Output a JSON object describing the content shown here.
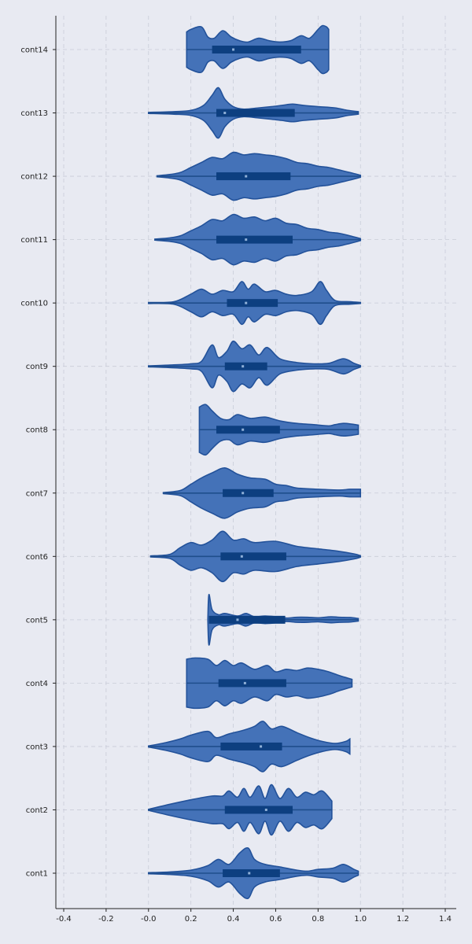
{
  "chart_data": {
    "type": "violin",
    "orientation": "horizontal",
    "title": "",
    "xlabel": "",
    "ylabel": "",
    "xlim": [
      -0.45,
      1.45
    ],
    "xticks": [
      -0.4,
      -0.2,
      0.0,
      0.2,
      0.4,
      0.6,
      0.8,
      1.0,
      1.2,
      1.4
    ],
    "xtick_labels": [
      "-0.4",
      "-0.2",
      "-0.0",
      "0.2",
      "0.4",
      "0.6",
      "0.8",
      "1.0",
      "1.2",
      "1.4"
    ],
    "grid": true,
    "colors": {
      "fill": "#4472b8",
      "edge": "#23529a",
      "box": "#0d3f80",
      "median": "#8fb0d8",
      "background": "#e8eaf2",
      "grid": "#c9ccd8"
    },
    "categories": [
      "cont1",
      "cont2",
      "cont3",
      "cont4",
      "cont5",
      "cont6",
      "cont7",
      "cont8",
      "cont9",
      "cont10",
      "cont11",
      "cont12",
      "cont13",
      "cont14"
    ],
    "series": [
      {
        "category": "cont1",
        "min": 0.0,
        "q1": 0.35,
        "median": 0.475,
        "q3": 0.62,
        "max": 0.99,
        "density": [
          [
            0.0,
            0.02
          ],
          [
            0.1,
            0.05
          ],
          [
            0.2,
            0.12
          ],
          [
            0.28,
            0.3
          ],
          [
            0.33,
            0.55
          ],
          [
            0.38,
            0.35
          ],
          [
            0.43,
            0.8
          ],
          [
            0.47,
            1.0
          ],
          [
            0.5,
            0.55
          ],
          [
            0.55,
            0.35
          ],
          [
            0.62,
            0.25
          ],
          [
            0.7,
            0.12
          ],
          [
            0.75,
            0.08
          ],
          [
            0.8,
            0.15
          ],
          [
            0.87,
            0.2
          ],
          [
            0.92,
            0.35
          ],
          [
            0.97,
            0.15
          ],
          [
            0.99,
            0.08
          ]
        ]
      },
      {
        "category": "cont2",
        "min": 0.0,
        "q1": 0.36,
        "median": 0.555,
        "q3": 0.68,
        "max": 0.865,
        "density": [
          [
            0.0,
            0.02
          ],
          [
            0.1,
            0.22
          ],
          [
            0.2,
            0.4
          ],
          [
            0.3,
            0.55
          ],
          [
            0.35,
            0.55
          ],
          [
            0.38,
            0.75
          ],
          [
            0.42,
            0.5
          ],
          [
            0.45,
            0.85
          ],
          [
            0.48,
            0.5
          ],
          [
            0.52,
            0.95
          ],
          [
            0.55,
            0.45
          ],
          [
            0.58,
            1.0
          ],
          [
            0.62,
            0.45
          ],
          [
            0.66,
            0.85
          ],
          [
            0.7,
            0.5
          ],
          [
            0.74,
            0.7
          ],
          [
            0.78,
            0.6
          ],
          [
            0.82,
            0.75
          ],
          [
            0.865,
            0.35
          ]
        ]
      },
      {
        "category": "cont3",
        "min": 0.0,
        "q1": 0.34,
        "median": 0.53,
        "q3": 0.63,
        "max": 0.95,
        "density": [
          [
            0.0,
            0.02
          ],
          [
            0.08,
            0.15
          ],
          [
            0.15,
            0.3
          ],
          [
            0.2,
            0.45
          ],
          [
            0.28,
            0.6
          ],
          [
            0.32,
            0.35
          ],
          [
            0.38,
            0.5
          ],
          [
            0.45,
            0.65
          ],
          [
            0.5,
            0.8
          ],
          [
            0.54,
            1.0
          ],
          [
            0.58,
            0.7
          ],
          [
            0.63,
            0.8
          ],
          [
            0.7,
            0.55
          ],
          [
            0.76,
            0.35
          ],
          [
            0.82,
            0.2
          ],
          [
            0.88,
            0.12
          ],
          [
            0.93,
            0.2
          ],
          [
            0.95,
            0.3
          ]
        ]
      },
      {
        "category": "cont4",
        "min": 0.18,
        "q1": 0.33,
        "median": 0.455,
        "q3": 0.65,
        "max": 0.96,
        "density": [
          [
            0.18,
            0.95
          ],
          [
            0.22,
            1.0
          ],
          [
            0.28,
            0.95
          ],
          [
            0.32,
            0.7
          ],
          [
            0.36,
            0.9
          ],
          [
            0.4,
            0.7
          ],
          [
            0.44,
            0.8
          ],
          [
            0.5,
            0.55
          ],
          [
            0.56,
            0.7
          ],
          [
            0.6,
            0.45
          ],
          [
            0.65,
            0.55
          ],
          [
            0.7,
            0.5
          ],
          [
            0.75,
            0.6
          ],
          [
            0.8,
            0.55
          ],
          [
            0.85,
            0.45
          ],
          [
            0.9,
            0.3
          ],
          [
            0.94,
            0.2
          ],
          [
            0.96,
            0.15
          ]
        ]
      },
      {
        "category": "cont5",
        "min": 0.285,
        "q1": 0.285,
        "median": 0.42,
        "q3": 0.645,
        "max": 0.99,
        "density": [
          [
            0.28,
            0.05
          ],
          [
            0.285,
            1.0
          ],
          [
            0.3,
            0.4
          ],
          [
            0.33,
            0.2
          ],
          [
            0.36,
            0.25
          ],
          [
            0.42,
            0.15
          ],
          [
            0.46,
            0.25
          ],
          [
            0.5,
            0.12
          ],
          [
            0.55,
            0.15
          ],
          [
            0.6,
            0.12
          ],
          [
            0.65,
            0.07
          ],
          [
            0.7,
            0.1
          ],
          [
            0.75,
            0.1
          ],
          [
            0.8,
            0.08
          ],
          [
            0.86,
            0.12
          ],
          [
            0.9,
            0.1
          ],
          [
            0.95,
            0.09
          ],
          [
            0.99,
            0.05
          ]
        ]
      },
      {
        "category": "cont6",
        "min": 0.01,
        "q1": 0.34,
        "median": 0.44,
        "q3": 0.65,
        "max": 1.0,
        "density": [
          [
            0.01,
            0.02
          ],
          [
            0.1,
            0.08
          ],
          [
            0.15,
            0.35
          ],
          [
            0.2,
            0.55
          ],
          [
            0.25,
            0.45
          ],
          [
            0.3,
            0.65
          ],
          [
            0.35,
            1.0
          ],
          [
            0.4,
            0.65
          ],
          [
            0.45,
            0.7
          ],
          [
            0.5,
            0.55
          ],
          [
            0.6,
            0.6
          ],
          [
            0.7,
            0.4
          ],
          [
            0.8,
            0.3
          ],
          [
            0.9,
            0.2
          ],
          [
            0.97,
            0.1
          ],
          [
            1.0,
            0.03
          ]
        ]
      },
      {
        "category": "cont7",
        "min": 0.07,
        "q1": 0.35,
        "median": 0.445,
        "q3": 0.59,
        "max": 1.0,
        "density": [
          [
            0.07,
            0.02
          ],
          [
            0.15,
            0.1
          ],
          [
            0.2,
            0.35
          ],
          [
            0.25,
            0.6
          ],
          [
            0.3,
            0.8
          ],
          [
            0.36,
            1.0
          ],
          [
            0.42,
            0.75
          ],
          [
            0.48,
            0.6
          ],
          [
            0.55,
            0.55
          ],
          [
            0.6,
            0.35
          ],
          [
            0.65,
            0.3
          ],
          [
            0.7,
            0.2
          ],
          [
            0.8,
            0.15
          ],
          [
            0.9,
            0.12
          ],
          [
            0.95,
            0.15
          ],
          [
            1.0,
            0.15
          ]
        ]
      },
      {
        "category": "cont8",
        "min": 0.24,
        "q1": 0.32,
        "median": 0.445,
        "q3": 0.62,
        "max": 0.99,
        "density": [
          [
            0.24,
            0.9
          ],
          [
            0.27,
            1.0
          ],
          [
            0.3,
            0.75
          ],
          [
            0.34,
            0.45
          ],
          [
            0.38,
            0.4
          ],
          [
            0.42,
            0.6
          ],
          [
            0.48,
            0.45
          ],
          [
            0.55,
            0.5
          ],
          [
            0.62,
            0.35
          ],
          [
            0.7,
            0.25
          ],
          [
            0.78,
            0.2
          ],
          [
            0.85,
            0.15
          ],
          [
            0.88,
            0.2
          ],
          [
            0.92,
            0.25
          ],
          [
            0.96,
            0.22
          ],
          [
            0.99,
            0.18
          ]
        ]
      },
      {
        "category": "cont9",
        "min": 0.0,
        "q1": 0.36,
        "median": 0.445,
        "q3": 0.56,
        "max": 1.0,
        "density": [
          [
            0.0,
            0.02
          ],
          [
            0.1,
            0.05
          ],
          [
            0.2,
            0.1
          ],
          [
            0.25,
            0.2
          ],
          [
            0.3,
            0.85
          ],
          [
            0.33,
            0.35
          ],
          [
            0.37,
            0.6
          ],
          [
            0.4,
            1.0
          ],
          [
            0.44,
            0.7
          ],
          [
            0.48,
            0.85
          ],
          [
            0.52,
            0.45
          ],
          [
            0.56,
            0.75
          ],
          [
            0.62,
            0.3
          ],
          [
            0.7,
            0.15
          ],
          [
            0.78,
            0.1
          ],
          [
            0.85,
            0.12
          ],
          [
            0.92,
            0.3
          ],
          [
            0.97,
            0.12
          ],
          [
            1.0,
            0.03
          ]
        ]
      },
      {
        "category": "cont10",
        "min": 0.0,
        "q1": 0.37,
        "median": 0.46,
        "q3": 0.61,
        "max": 1.0,
        "density": [
          [
            0.0,
            0.02
          ],
          [
            0.12,
            0.05
          ],
          [
            0.2,
            0.35
          ],
          [
            0.25,
            0.55
          ],
          [
            0.3,
            0.35
          ],
          [
            0.35,
            0.5
          ],
          [
            0.4,
            0.45
          ],
          [
            0.44,
            0.85
          ],
          [
            0.47,
            0.55
          ],
          [
            0.5,
            0.75
          ],
          [
            0.55,
            0.45
          ],
          [
            0.6,
            0.5
          ],
          [
            0.65,
            0.35
          ],
          [
            0.7,
            0.3
          ],
          [
            0.77,
            0.45
          ],
          [
            0.81,
            0.85
          ],
          [
            0.84,
            0.5
          ],
          [
            0.88,
            0.1
          ],
          [
            0.95,
            0.05
          ],
          [
            1.0,
            0.02
          ]
        ]
      },
      {
        "category": "cont11",
        "min": 0.03,
        "q1": 0.32,
        "median": 0.46,
        "q3": 0.68,
        "max": 1.0,
        "density": [
          [
            0.03,
            0.02
          ],
          [
            0.1,
            0.07
          ],
          [
            0.15,
            0.15
          ],
          [
            0.2,
            0.35
          ],
          [
            0.25,
            0.55
          ],
          [
            0.3,
            0.8
          ],
          [
            0.35,
            0.75
          ],
          [
            0.4,
            1.0
          ],
          [
            0.45,
            0.85
          ],
          [
            0.5,
            0.9
          ],
          [
            0.55,
            0.75
          ],
          [
            0.6,
            0.85
          ],
          [
            0.65,
            0.65
          ],
          [
            0.7,
            0.6
          ],
          [
            0.75,
            0.45
          ],
          [
            0.8,
            0.4
          ],
          [
            0.85,
            0.3
          ],
          [
            0.9,
            0.25
          ],
          [
            0.95,
            0.15
          ],
          [
            1.0,
            0.04
          ]
        ]
      },
      {
        "category": "cont12",
        "min": 0.04,
        "q1": 0.32,
        "median": 0.46,
        "q3": 0.67,
        "max": 1.0,
        "density": [
          [
            0.04,
            0.02
          ],
          [
            0.1,
            0.07
          ],
          [
            0.15,
            0.15
          ],
          [
            0.2,
            0.35
          ],
          [
            0.25,
            0.55
          ],
          [
            0.3,
            0.75
          ],
          [
            0.35,
            0.7
          ],
          [
            0.4,
            0.95
          ],
          [
            0.45,
            0.85
          ],
          [
            0.5,
            0.9
          ],
          [
            0.55,
            0.85
          ],
          [
            0.6,
            0.8
          ],
          [
            0.65,
            0.7
          ],
          [
            0.7,
            0.55
          ],
          [
            0.75,
            0.5
          ],
          [
            0.8,
            0.4
          ],
          [
            0.85,
            0.35
          ],
          [
            0.9,
            0.25
          ],
          [
            0.95,
            0.15
          ],
          [
            1.0,
            0.04
          ]
        ]
      },
      {
        "category": "cont13",
        "min": 0.0,
        "q1": 0.32,
        "median": 0.36,
        "q3": 0.69,
        "max": 0.99,
        "density": [
          [
            0.0,
            0.02
          ],
          [
            0.12,
            0.05
          ],
          [
            0.2,
            0.1
          ],
          [
            0.26,
            0.3
          ],
          [
            0.3,
            0.7
          ],
          [
            0.33,
            1.0
          ],
          [
            0.36,
            0.55
          ],
          [
            0.4,
            0.25
          ],
          [
            0.45,
            0.15
          ],
          [
            0.52,
            0.2
          ],
          [
            0.58,
            0.25
          ],
          [
            0.63,
            0.3
          ],
          [
            0.68,
            0.35
          ],
          [
            0.73,
            0.3
          ],
          [
            0.8,
            0.25
          ],
          [
            0.88,
            0.2
          ],
          [
            0.94,
            0.1
          ],
          [
            0.99,
            0.05
          ]
        ]
      },
      {
        "category": "cont14",
        "min": 0.18,
        "q1": 0.3,
        "median": 0.4,
        "q3": 0.72,
        "max": 0.85,
        "density": [
          [
            0.18,
            0.7
          ],
          [
            0.2,
            0.8
          ],
          [
            0.25,
            0.9
          ],
          [
            0.28,
            0.5
          ],
          [
            0.31,
            0.45
          ],
          [
            0.35,
            0.75
          ],
          [
            0.39,
            0.5
          ],
          [
            0.43,
            0.35
          ],
          [
            0.47,
            0.3
          ],
          [
            0.52,
            0.45
          ],
          [
            0.57,
            0.35
          ],
          [
            0.62,
            0.3
          ],
          [
            0.67,
            0.35
          ],
          [
            0.72,
            0.55
          ],
          [
            0.76,
            0.45
          ],
          [
            0.8,
            0.8
          ],
          [
            0.82,
            0.95
          ],
          [
            0.84,
            0.9
          ],
          [
            0.85,
            0.8
          ]
        ]
      }
    ]
  }
}
